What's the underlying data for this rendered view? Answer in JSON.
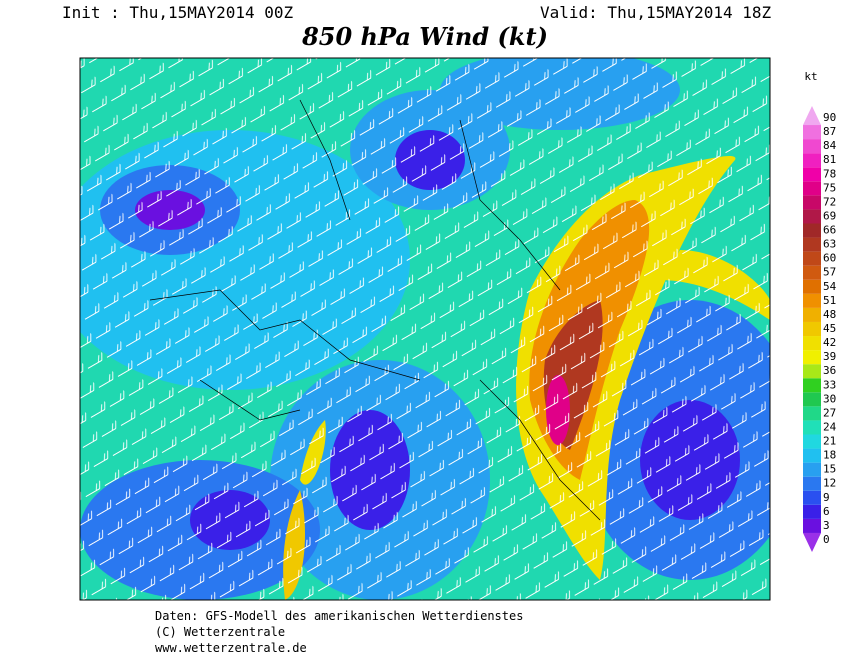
{
  "header": {
    "init": "Init : Thu,15MAY2014 00Z",
    "valid": "Valid: Thu,15MAY2014 18Z",
    "title": "850 hPa Wind (kt)"
  },
  "legend": {
    "unit": "kt",
    "levels": [
      {
        "value": 0,
        "color": "#9a30e8"
      },
      {
        "value": 3,
        "color": "#6a10e0"
      },
      {
        "value": 6,
        "color": "#3a20e8"
      },
      {
        "value": 9,
        "color": "#2a50f0"
      },
      {
        "value": 12,
        "color": "#2a78f0"
      },
      {
        "value": 15,
        "color": "#28a0f0"
      },
      {
        "value": 18,
        "color": "#20c0f0"
      },
      {
        "value": 21,
        "color": "#20d8e0"
      },
      {
        "value": 24,
        "color": "#20e0b8"
      },
      {
        "value": 27,
        "color": "#20d888"
      },
      {
        "value": 30,
        "color": "#20c850"
      },
      {
        "value": 33,
        "color": "#30d020"
      },
      {
        "value": 36,
        "color": "#a8e818"
      },
      {
        "value": 39,
        "color": "#f0f000"
      },
      {
        "value": 42,
        "color": "#f0e000"
      },
      {
        "value": 45,
        "color": "#f0c800"
      },
      {
        "value": 48,
        "color": "#f0b000"
      },
      {
        "value": 51,
        "color": "#f09000"
      },
      {
        "value": 54,
        "color": "#e07000"
      },
      {
        "value": 57,
        "color": "#d05a10"
      },
      {
        "value": 60,
        "color": "#c04818"
      },
      {
        "value": 63,
        "color": "#b03820"
      },
      {
        "value": 66,
        "color": "#a02828"
      },
      {
        "value": 69,
        "color": "#b01848"
      },
      {
        "value": 72,
        "color": "#c80868"
      },
      {
        "value": 75,
        "color": "#e00088"
      },
      {
        "value": 78,
        "color": "#f000a8"
      },
      {
        "value": 81,
        "color": "#f020c0"
      },
      {
        "value": 84,
        "color": "#f048d0"
      },
      {
        "value": 87,
        "color": "#f070e0"
      },
      {
        "value": 90,
        "color": "#f0a8f0"
      }
    ]
  },
  "footer": {
    "line1": "Daten: GFS-Modell des amerikanischen Wetterdienstes",
    "line2": "(C) Wetterzentrale",
    "line3": "www.wetterzentrale.de"
  }
}
